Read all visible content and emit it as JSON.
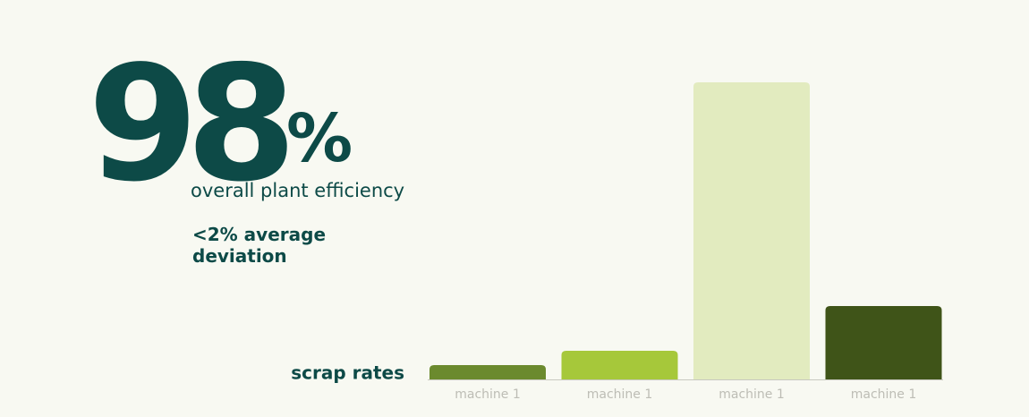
{
  "kpi": {
    "value": "98",
    "unit": "%",
    "caption": "overall plant efficiency",
    "note": "<2% average deviation"
  },
  "chart_data": {
    "type": "bar",
    "title": "scrap rates",
    "categories": [
      "machine 1",
      "machine 1",
      "machine 1",
      "machine 1"
    ],
    "values": [
      16,
      32,
      332,
      82
    ],
    "colors": [
      "#6b8a2e",
      "#a6c83a",
      "#e2ebbf",
      "#3f5418"
    ],
    "ylim": [
      0,
      332
    ]
  }
}
